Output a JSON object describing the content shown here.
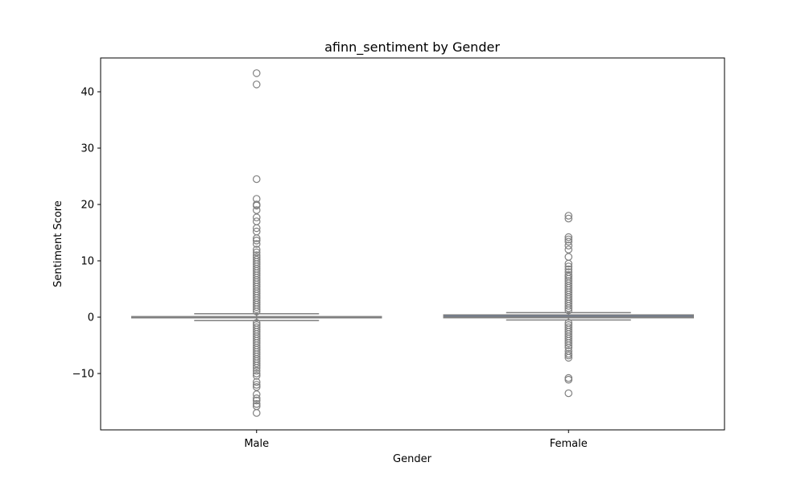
{
  "chart_data": {
    "type": "box",
    "title": "afinn_sentiment by Gender",
    "xlabel": "Gender",
    "ylabel": "Sentiment Score",
    "ylim": [
      -20,
      46
    ],
    "yticks": [
      -10,
      0,
      10,
      20,
      30,
      40
    ],
    "grid": false,
    "legend": "none",
    "colors": {
      "box_face": "#4c72b0",
      "line": "#808080"
    },
    "categories": [
      "Male",
      "Female"
    ],
    "boxes": [
      {
        "name": "Male",
        "q1": -0.1,
        "median": 0.0,
        "q3": 0.1,
        "whisker_low": -0.6,
        "whisker_high": 0.6,
        "outliers": [
          43.3,
          41.3,
          24.5,
          21.0,
          20.0,
          19.8,
          19.0,
          17.7,
          17.0,
          15.8,
          15.2,
          14.0,
          13.6,
          13.0,
          12.0,
          11.5,
          11.0,
          10.6,
          10.2,
          9.8,
          9.4,
          9.0,
          8.6,
          8.2,
          7.8,
          7.4,
          7.0,
          6.6,
          6.2,
          5.8,
          5.4,
          5.0,
          4.6,
          4.2,
          3.8,
          3.4,
          3.0,
          2.6,
          2.2,
          1.8,
          1.4,
          1.0,
          -1.0,
          -1.4,
          -1.8,
          -2.2,
          -2.6,
          -3.0,
          -3.4,
          -3.8,
          -4.2,
          -4.6,
          -5.0,
          -5.4,
          -5.8,
          -6.2,
          -6.6,
          -7.0,
          -7.4,
          -7.8,
          -8.2,
          -8.6,
          -9.0,
          -9.5,
          -10.0,
          -10.4,
          -11.5,
          -12.0,
          -12.4,
          -13.7,
          -14.4,
          -14.8,
          -15.4,
          -15.8,
          -17.0
        ]
      },
      {
        "name": "Female",
        "q1": -0.1,
        "median": 0.1,
        "q3": 0.4,
        "whisker_low": -0.5,
        "whisker_high": 0.8,
        "outliers": [
          18.0,
          17.5,
          14.2,
          13.8,
          13.4,
          12.7,
          12.0,
          10.7,
          9.5,
          9.0,
          8.5,
          8.0,
          7.5,
          7.2,
          6.8,
          6.4,
          6.0,
          5.6,
          5.2,
          4.8,
          4.4,
          4.0,
          3.6,
          3.2,
          2.8,
          2.4,
          2.0,
          1.6,
          1.2,
          -1.0,
          -1.4,
          -1.8,
          -2.2,
          -2.6,
          -3.0,
          -3.4,
          -3.8,
          -4.2,
          -4.6,
          -5.0,
          -5.4,
          -6.0,
          -6.5,
          -6.8,
          -7.2,
          -10.8,
          -11.1,
          -13.5
        ]
      }
    ]
  }
}
